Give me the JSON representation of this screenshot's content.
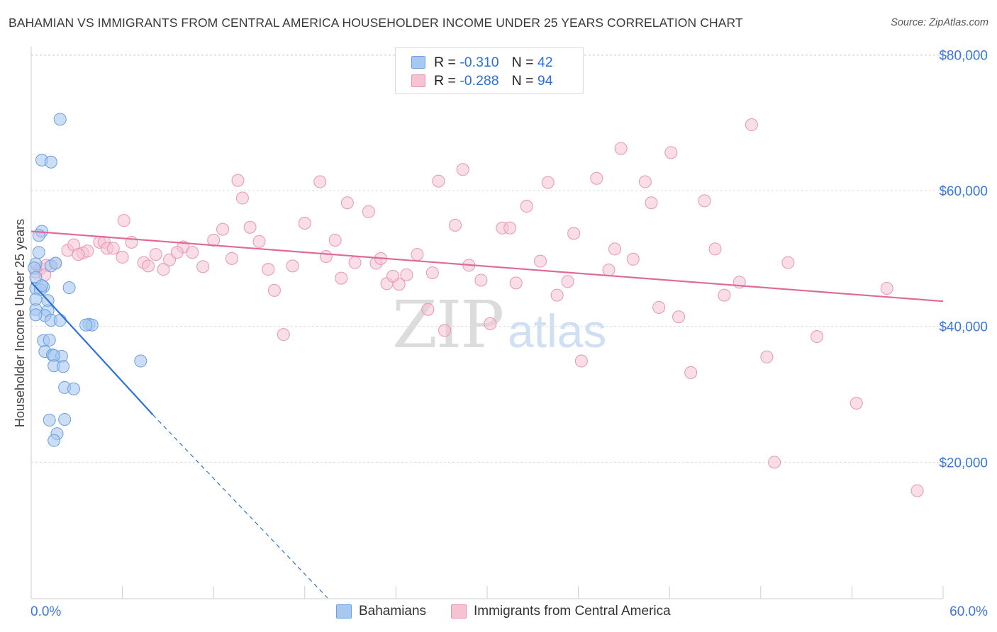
{
  "title": "BAHAMIAN VS IMMIGRANTS FROM CENTRAL AMERICA HOUSEHOLDER INCOME UNDER 25 YEARS CORRELATION CHART",
  "source": "Source: ZipAtlas.com",
  "watermark": {
    "zip": "ZIP",
    "atlas": "atlas"
  },
  "legend": {
    "rows": [
      {
        "r_label": "R =",
        "r_value": "-0.310",
        "n_label": "N =",
        "n_value": "42"
      },
      {
        "r_label": "R =",
        "r_value": "-0.288",
        "n_label": "N =",
        "n_value": "94"
      }
    ]
  },
  "colors": {
    "blue_fill": "#a9c8f0",
    "blue_stroke": "#6a9fe0",
    "blue_line": "#2f72d6",
    "pink_fill": "#f6c3d3",
    "pink_stroke": "#e796b0",
    "pink_line": "#e06a97",
    "grid": "#dcdcdc",
    "axis_text": "#3b78d8"
  },
  "chart_data": {
    "type": "scatter",
    "title": "BAHAMIAN VS IMMIGRANTS FROM CENTRAL AMERICA HOUSEHOLDER INCOME UNDER 25 YEARS CORRELATION CHART",
    "xlabel": "",
    "ylabel": "Householder Income Under 25 years",
    "xlim": [
      0,
      60
    ],
    "ylim": [
      0,
      82000
    ],
    "x_tick_labels": [
      "0.0%",
      "60.0%"
    ],
    "y_ticks": [
      20000,
      40000,
      60000,
      80000
    ],
    "y_tick_labels": [
      "$20,000",
      "$40,000",
      "$60,000",
      "$80,000"
    ],
    "grid": true,
    "legend_position": "bottom",
    "series": [
      {
        "name": "Bahamians",
        "color": "#a9c8f0",
        "points": [
          [
            1.9,
            70500
          ],
          [
            0.7,
            64500
          ],
          [
            1.3,
            64200
          ],
          [
            0.7,
            54000
          ],
          [
            0.5,
            53400
          ],
          [
            0.5,
            50900
          ],
          [
            0.3,
            49200
          ],
          [
            1.3,
            48900
          ],
          [
            1.6,
            49300
          ],
          [
            0.2,
            48600
          ],
          [
            0.3,
            47200
          ],
          [
            0.3,
            45600
          ],
          [
            0.8,
            45800
          ],
          [
            2.5,
            45700
          ],
          [
            0.6,
            45400
          ],
          [
            1.1,
            43800
          ],
          [
            0.3,
            42500
          ],
          [
            1.1,
            42300
          ],
          [
            0.9,
            41600
          ],
          [
            0.3,
            41700
          ],
          [
            1.3,
            40900
          ],
          [
            1.9,
            40900
          ],
          [
            3.8,
            40300
          ],
          [
            4.0,
            40200
          ],
          [
            3.6,
            40200
          ],
          [
            0.8,
            37900
          ],
          [
            1.2,
            38000
          ],
          [
            0.9,
            36300
          ],
          [
            1.4,
            35800
          ],
          [
            2.0,
            35600
          ],
          [
            1.5,
            35700
          ],
          [
            7.2,
            34900
          ],
          [
            1.5,
            34200
          ],
          [
            2.1,
            34100
          ],
          [
            2.2,
            31000
          ],
          [
            2.8,
            30800
          ],
          [
            2.2,
            26300
          ],
          [
            1.2,
            26200
          ],
          [
            1.7,
            24200
          ],
          [
            1.5,
            23200
          ],
          [
            0.3,
            44000
          ],
          [
            0.7,
            46000
          ]
        ]
      },
      {
        "name": "Immigrants from Central America",
        "color": "#f6c3d3",
        "points": [
          [
            0.6,
            48500
          ],
          [
            1.0,
            49000
          ],
          [
            1.6,
            49300
          ],
          [
            2.4,
            51200
          ],
          [
            2.8,
            52000
          ],
          [
            3.4,
            50800
          ],
          [
            3.7,
            51100
          ],
          [
            4.5,
            52400
          ],
          [
            4.8,
            52400
          ],
          [
            5.0,
            51500
          ],
          [
            5.4,
            51500
          ],
          [
            6.0,
            50200
          ],
          [
            6.6,
            52400
          ],
          [
            7.4,
            49400
          ],
          [
            7.7,
            48900
          ],
          [
            8.2,
            50600
          ],
          [
            8.7,
            48400
          ],
          [
            9.1,
            49800
          ],
          [
            10.0,
            51700
          ],
          [
            10.6,
            50900
          ],
          [
            11.3,
            48800
          ],
          [
            12.0,
            52700
          ],
          [
            12.6,
            54300
          ],
          [
            13.2,
            50000
          ],
          [
            13.6,
            61500
          ],
          [
            14.4,
            54600
          ],
          [
            15.0,
            52500
          ],
          [
            15.6,
            48400
          ],
          [
            16.0,
            45300
          ],
          [
            16.6,
            38800
          ],
          [
            17.2,
            48900
          ],
          [
            18.0,
            55200
          ],
          [
            19.0,
            61300
          ],
          [
            19.4,
            50300
          ],
          [
            20.0,
            52700
          ],
          [
            20.4,
            47100
          ],
          [
            20.8,
            58200
          ],
          [
            21.3,
            49400
          ],
          [
            22.2,
            56900
          ],
          [
            22.7,
            49300
          ],
          [
            23.0,
            50000
          ],
          [
            23.4,
            46300
          ],
          [
            24.2,
            46200
          ],
          [
            24.7,
            47600
          ],
          [
            25.4,
            50600
          ],
          [
            26.1,
            42500
          ],
          [
            26.4,
            47900
          ],
          [
            26.8,
            61400
          ],
          [
            27.2,
            39400
          ],
          [
            27.9,
            54900
          ],
          [
            28.4,
            63100
          ],
          [
            28.8,
            49000
          ],
          [
            29.6,
            46800
          ],
          [
            30.2,
            40400
          ],
          [
            31.0,
            54500
          ],
          [
            31.5,
            54500
          ],
          [
            31.9,
            46400
          ],
          [
            32.6,
            57700
          ],
          [
            33.5,
            49600
          ],
          [
            34.0,
            61200
          ],
          [
            34.6,
            44600
          ],
          [
            35.3,
            46600
          ],
          [
            35.7,
            53700
          ],
          [
            36.2,
            34900
          ],
          [
            37.2,
            61800
          ],
          [
            38.0,
            48300
          ],
          [
            38.4,
            51400
          ],
          [
            38.8,
            66200
          ],
          [
            39.6,
            49900
          ],
          [
            40.4,
            61300
          ],
          [
            40.8,
            58200
          ],
          [
            41.3,
            42800
          ],
          [
            42.1,
            65600
          ],
          [
            42.6,
            41400
          ],
          [
            43.4,
            33200
          ],
          [
            44.3,
            58500
          ],
          [
            45.0,
            51400
          ],
          [
            45.6,
            44600
          ],
          [
            46.6,
            46500
          ],
          [
            47.4,
            69700
          ],
          [
            48.4,
            35500
          ],
          [
            48.9,
            20000
          ],
          [
            49.8,
            49400
          ],
          [
            51.7,
            38500
          ],
          [
            54.3,
            28700
          ],
          [
            56.3,
            45600
          ],
          [
            58.3,
            15800
          ],
          [
            0.3,
            48000
          ],
          [
            0.9,
            47600
          ],
          [
            3.1,
            50600
          ],
          [
            9.6,
            50900
          ],
          [
            23.8,
            47400
          ],
          [
            13.9,
            58900
          ],
          [
            6.1,
            55600
          ]
        ]
      }
    ],
    "trend_lines": [
      {
        "series": "Bahamians",
        "x": [
          0,
          8
        ],
        "y": [
          46500,
          27000
        ],
        "dashed_extension_to": [
          19.5,
          0
        ]
      },
      {
        "series": "Immigrants from Central America",
        "x": [
          0,
          60
        ],
        "y": [
          54000,
          43700
        ]
      }
    ]
  },
  "bottom_legend": {
    "items": [
      "Bahamians",
      "Immigrants from Central America"
    ]
  }
}
